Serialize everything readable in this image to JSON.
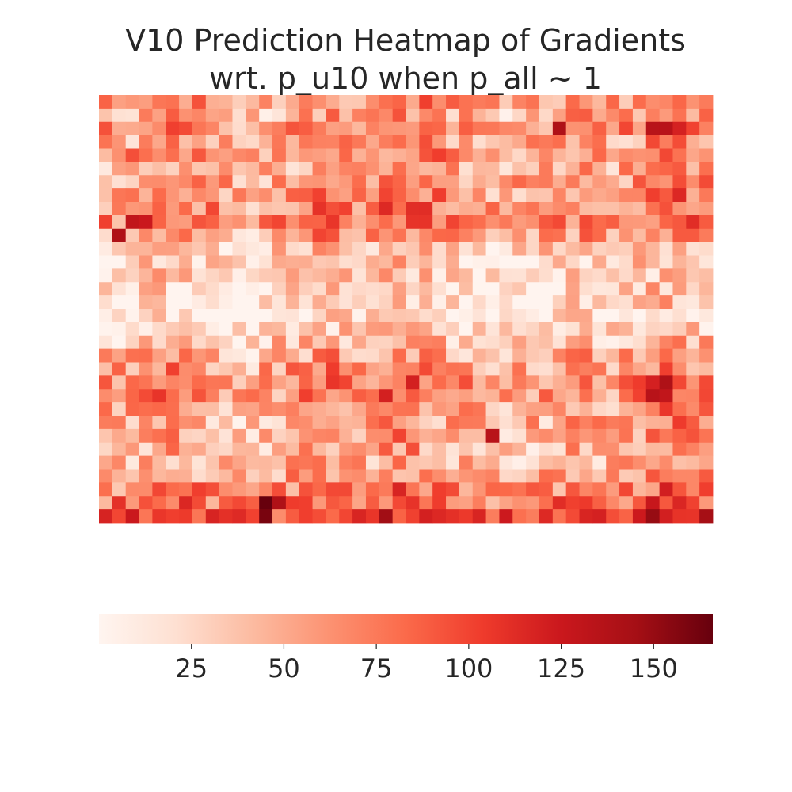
{
  "chart_data": {
    "type": "heatmap",
    "title_line1": "V10 Prediction Heatmap of Gradients",
    "title_line2": "wrt. p_u10 when p_all ~ 1",
    "rows": 32,
    "cols": 46,
    "colormap": "Reds",
    "colormap_stops": [
      "#fff5f0",
      "#fee0d2",
      "#fcbba1",
      "#fc9272",
      "#fb6a4a",
      "#ef3b2c",
      "#cb181d",
      "#a50f15",
      "#67000d"
    ],
    "value_range": [
      0,
      166
    ],
    "colorbar": {
      "orientation": "horizontal",
      "ticks": [
        25,
        50,
        75,
        100,
        125,
        150
      ],
      "tick_labels": [
        "25",
        "50",
        "75",
        "100",
        "125",
        "150"
      ]
    },
    "row_profile": [
      55,
      45,
      60,
      50,
      60,
      45,
      55,
      60,
      65,
      70,
      50,
      30,
      20,
      18,
      15,
      12,
      12,
      18,
      35,
      45,
      55,
      65,
      60,
      55,
      45,
      50,
      40,
      40,
      50,
      65,
      75,
      100
    ],
    "col_profile": [
      0,
      0,
      0,
      10,
      15,
      15,
      10,
      5,
      0,
      -5,
      -10,
      -10,
      -5,
      0,
      5,
      10,
      15,
      15,
      10,
      5,
      10,
      15,
      20,
      20,
      15,
      10,
      5,
      0,
      -5,
      -10,
      -10,
      -5,
      0,
      0,
      5,
      10,
      10,
      5,
      0,
      5,
      10,
      20,
      25,
      25,
      15,
      10
    ],
    "hotspots": [
      {
        "row": 30,
        "col": 12,
        "value": 166
      },
      {
        "row": 31,
        "col": 12,
        "value": 160
      },
      {
        "row": 30,
        "col": 13,
        "value": 140
      },
      {
        "row": 31,
        "col": 41,
        "value": 150
      },
      {
        "row": 2,
        "col": 34,
        "value": 140
      },
      {
        "row": 2,
        "col": 41,
        "value": 135
      },
      {
        "row": 2,
        "col": 42,
        "value": 135
      },
      {
        "row": 10,
        "col": 1,
        "value": 140
      },
      {
        "row": 9,
        "col": 2,
        "value": 130
      },
      {
        "row": 9,
        "col": 3,
        "value": 125
      },
      {
        "row": 21,
        "col": 42,
        "value": 140
      },
      {
        "row": 22,
        "col": 41,
        "value": 135
      },
      {
        "row": 22,
        "col": 42,
        "value": 130
      },
      {
        "row": 25,
        "col": 29,
        "value": 135
      },
      {
        "row": 21,
        "col": 23,
        "value": 120
      },
      {
        "row": 22,
        "col": 21,
        "value": 120
      }
    ]
  }
}
